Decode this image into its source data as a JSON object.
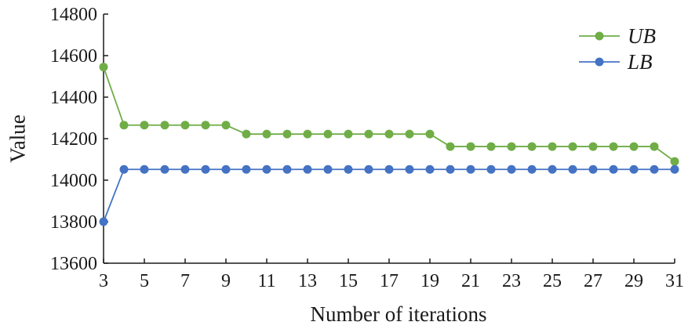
{
  "chart_data": {
    "type": "line",
    "xlabel": "Number of iterations",
    "ylabel": "Value",
    "xlim": [
      3,
      31
    ],
    "ylim": [
      13600,
      14800
    ],
    "xticks": [
      3,
      5,
      7,
      9,
      11,
      13,
      15,
      17,
      19,
      21,
      23,
      25,
      27,
      29,
      31
    ],
    "yticks": [
      13600,
      13800,
      14000,
      14200,
      14400,
      14600,
      14800
    ],
    "grid": false,
    "legend": "top-right",
    "series": [
      {
        "name": "UB",
        "color": "#70ad47",
        "x": [
          3,
          4,
          5,
          6,
          7,
          8,
          9,
          10,
          11,
          12,
          13,
          14,
          15,
          16,
          17,
          18,
          19,
          20,
          21,
          22,
          23,
          24,
          25,
          26,
          27,
          28,
          29,
          30,
          31
        ],
        "values": [
          14545,
          14265,
          14265,
          14265,
          14265,
          14265,
          14265,
          14222,
          14222,
          14222,
          14222,
          14222,
          14222,
          14222,
          14222,
          14222,
          14222,
          14162,
          14162,
          14162,
          14162,
          14162,
          14162,
          14162,
          14162,
          14162,
          14162,
          14162,
          14090
        ]
      },
      {
        "name": "LB",
        "color": "#4472c4",
        "x": [
          3,
          4,
          5,
          6,
          7,
          8,
          9,
          10,
          11,
          12,
          13,
          14,
          15,
          16,
          17,
          18,
          19,
          20,
          21,
          22,
          23,
          24,
          25,
          26,
          27,
          28,
          29,
          30,
          31
        ],
        "values": [
          13800,
          14052,
          14052,
          14052,
          14052,
          14052,
          14052,
          14052,
          14052,
          14052,
          14052,
          14052,
          14052,
          14052,
          14052,
          14052,
          14052,
          14052,
          14052,
          14052,
          14052,
          14052,
          14052,
          14052,
          14052,
          14052,
          14052,
          14052,
          14052
        ]
      }
    ]
  }
}
